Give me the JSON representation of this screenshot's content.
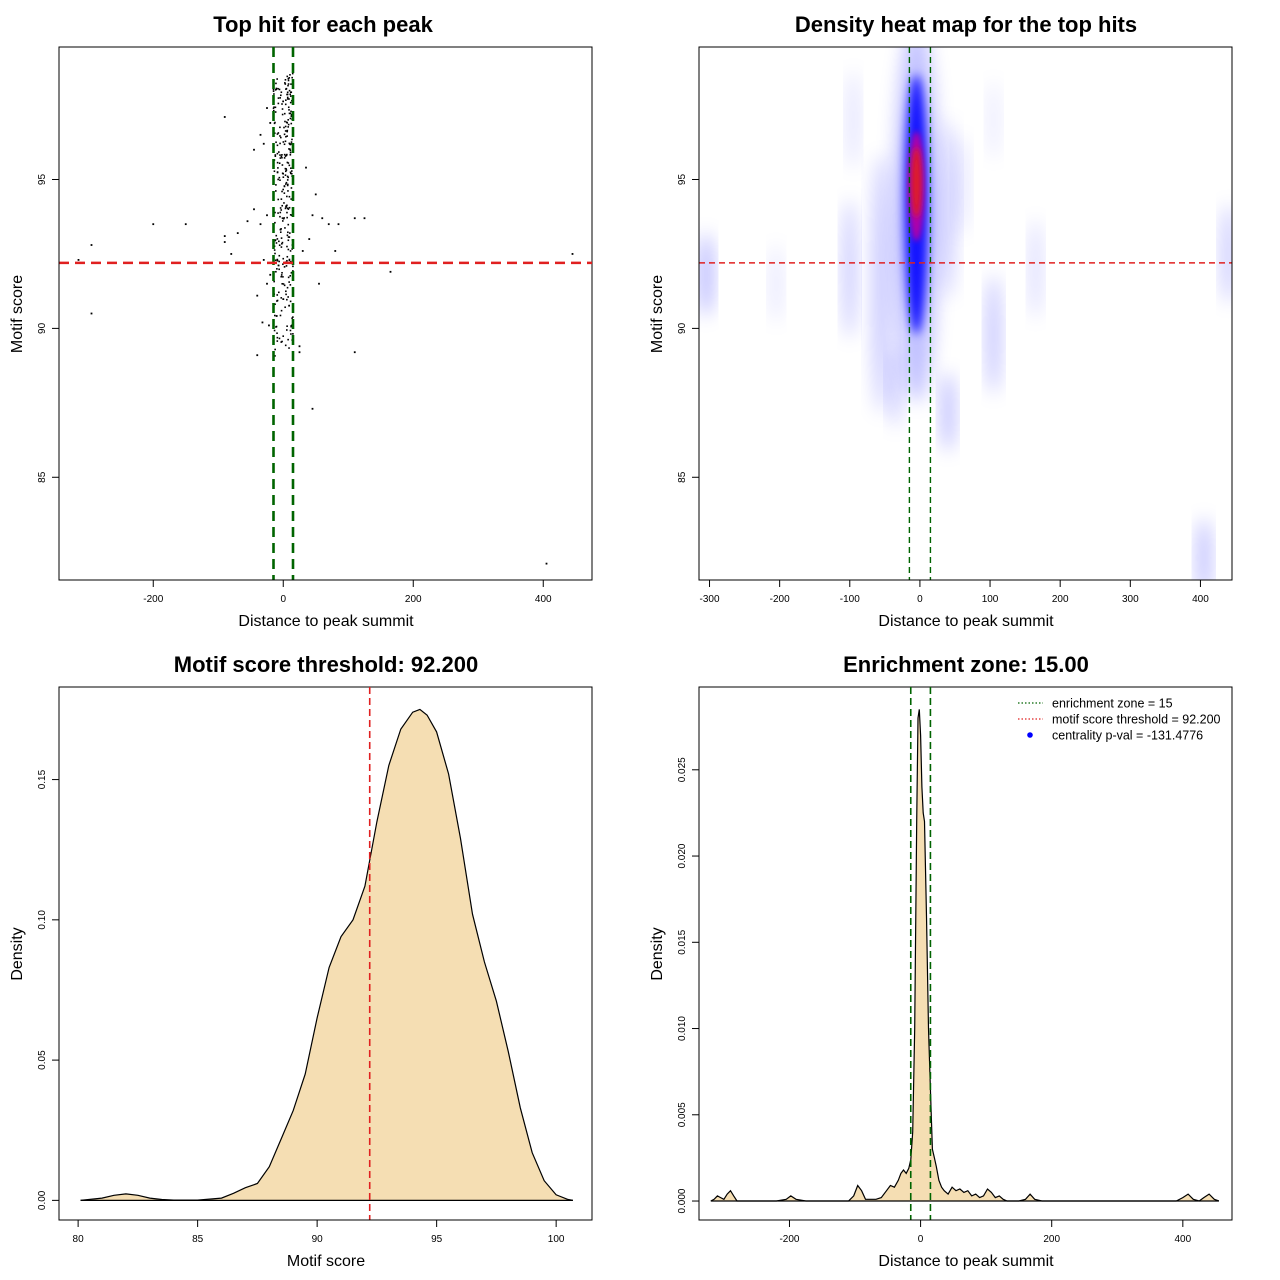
{
  "figure": {
    "background": "#ffffff",
    "colors": {
      "green": "#006400",
      "red": "#e02020",
      "black": "#000000",
      "wheat": "#f5deb3",
      "blue": "#0000ff"
    }
  },
  "chart_data": [
    {
      "type": "scatter",
      "title": "Top hit for each peak",
      "xlabel": "Distance to peak summit",
      "ylabel": "Motif score",
      "xlim": [
        -345,
        475
      ],
      "ylim": [
        81.55,
        99.45
      ],
      "xticks": [
        -200,
        0,
        200,
        400
      ],
      "xtick_labels": [
        "-200",
        "0",
        "200",
        "400"
      ],
      "yticks": [
        85,
        90,
        95
      ],
      "ytick_labels": [
        "85",
        "90",
        "95"
      ],
      "hlines": [
        {
          "y": 92.2,
          "color": "red",
          "style": "dashed"
        }
      ],
      "vlines": [
        {
          "x": -15,
          "color": "green",
          "style": "dashed"
        },
        {
          "x": 15,
          "color": "green",
          "style": "dashed"
        }
      ],
      "outliers": [
        [
          -315,
          92.3
        ],
        [
          -295,
          92.8
        ],
        [
          -295,
          90.5
        ],
        [
          -200,
          93.5
        ],
        [
          -150,
          93.5
        ],
        [
          -90,
          97.1
        ],
        [
          -90,
          93.1
        ],
        [
          -90,
          92.9
        ],
        [
          -80,
          92.5
        ],
        [
          -70,
          93.2
        ],
        [
          -55,
          93.6
        ],
        [
          -45,
          94.0
        ],
        [
          -45,
          96.0
        ],
        [
          -40,
          89.1
        ],
        [
          -40,
          91.1
        ],
        [
          -35,
          96.5
        ],
        [
          -35,
          93.5
        ],
        [
          -32,
          90.2
        ],
        [
          -30,
          96.2
        ],
        [
          -30,
          92.3
        ],
        [
          -25,
          93.8
        ],
        [
          -25,
          91.5
        ],
        [
          -25,
          97.4
        ],
        [
          -22,
          90.1
        ],
        [
          -20,
          91.8
        ],
        [
          -20,
          96.9
        ],
        [
          25,
          89.2
        ],
        [
          25,
          89.4
        ],
        [
          30,
          92.6
        ],
        [
          35,
          95.4
        ],
        [
          40,
          93.0
        ],
        [
          45,
          87.3
        ],
        [
          45,
          93.8
        ],
        [
          50,
          94.5
        ],
        [
          55,
          91.5
        ],
        [
          60,
          93.7
        ],
        [
          70,
          93.5
        ],
        [
          80,
          92.6
        ],
        [
          85,
          93.5
        ],
        [
          110,
          93.7
        ],
        [
          110,
          89.2
        ],
        [
          125,
          93.7
        ],
        [
          165,
          91.9
        ],
        [
          405,
          82.1
        ],
        [
          445,
          92.5
        ]
      ],
      "core_cluster": {
        "x_range": [
          -15,
          15
        ],
        "y_range": [
          89.0,
          98.6
        ],
        "n": 320
      }
    },
    {
      "type": "heatmap",
      "title": "Density heat map for the top hits",
      "xlabel": "Distance to peak summit",
      "ylabel": "Motif score",
      "xlim": [
        -315,
        445
      ],
      "ylim": [
        81.55,
        99.45
      ],
      "xticks": [
        -300,
        -200,
        -100,
        0,
        100,
        200,
        300,
        400
      ],
      "xtick_labels": [
        "-300",
        "-200",
        "-100",
        "0",
        "100",
        "200",
        "300",
        "400"
      ],
      "yticks": [
        85,
        90,
        95
      ],
      "ytick_labels": [
        "85",
        "90",
        "95"
      ],
      "hlines": [
        {
          "y": 92.2,
          "color": "red",
          "style": "dashed"
        }
      ],
      "vlines": [
        {
          "x": -15,
          "color": "green",
          "style": "dashed"
        },
        {
          "x": 15,
          "color": "green",
          "style": "dashed"
        }
      ],
      "palette": [
        "white",
        "blue",
        "red"
      ],
      "hotspot": {
        "x": -5,
        "y": 94.5
      }
    },
    {
      "type": "area",
      "title": "Motif score threshold: 92.200",
      "xlabel": "Motif score",
      "ylabel": "Density",
      "xlim": [
        79.2,
        101.5
      ],
      "ylim": [
        -0.007,
        0.183
      ],
      "xticks": [
        80,
        85,
        90,
        95,
        100
      ],
      "xtick_labels": [
        "80",
        "85",
        "90",
        "95",
        "100"
      ],
      "yticks": [
        0,
        0.05,
        0.1,
        0.15
      ],
      "ytick_labels": [
        "0.00",
        "0.05",
        "0.10",
        "0.15"
      ],
      "vlines": [
        {
          "x": 92.2,
          "color": "red",
          "style": "dashed"
        }
      ],
      "fill": "wheat",
      "x": [
        80.1,
        81,
        81.5,
        82,
        82.5,
        83,
        83.5,
        84,
        85,
        86,
        86.5,
        87,
        87.5,
        88,
        88.5,
        89,
        89.5,
        90,
        90.5,
        91,
        91.5,
        92,
        92.5,
        93,
        93.5,
        94,
        94.3,
        94.6,
        95,
        95.5,
        96,
        96.5,
        97,
        97.5,
        98,
        98.5,
        99,
        99.5,
        100,
        100.5,
        100.7
      ],
      "values": [
        0,
        0.0008,
        0.0018,
        0.0023,
        0.0018,
        0.0008,
        0.0003,
        0.0001,
        0.0001,
        0.0008,
        0.0025,
        0.0045,
        0.006,
        0.012,
        0.022,
        0.032,
        0.045,
        0.065,
        0.083,
        0.094,
        0.1,
        0.112,
        0.135,
        0.155,
        0.168,
        0.174,
        0.175,
        0.173,
        0.167,
        0.152,
        0.129,
        0.102,
        0.085,
        0.071,
        0.053,
        0.033,
        0.017,
        0.007,
        0.002,
        0.0003,
        0
      ]
    },
    {
      "type": "area",
      "title": "Enrichment zone: 15.00",
      "xlabel": "Distance to peak summit",
      "ylabel": "Density",
      "xlim": [
        -338,
        475
      ],
      "ylim": [
        -0.0011,
        0.0298
      ],
      "xticks": [
        -200,
        0,
        200,
        400
      ],
      "xtick_labels": [
        "-200",
        "0",
        "200",
        "400"
      ],
      "yticks": [
        0,
        0.005,
        0.01,
        0.015,
        0.02,
        0.025
      ],
      "ytick_labels": [
        "0.000",
        "0.005",
        "0.010",
        "0.015",
        "0.020",
        "0.025"
      ],
      "vlines": [
        {
          "x": -15,
          "color": "green",
          "style": "dashed"
        },
        {
          "x": 15,
          "color": "green",
          "style": "dashed"
        }
      ],
      "fill": "wheat",
      "x": [
        -320,
        -315,
        -310,
        -305,
        -300,
        -295,
        -290,
        -285,
        -280,
        -220,
        -205,
        -198,
        -190,
        -175,
        -110,
        -102,
        -96,
        -90,
        -84,
        -78,
        -68,
        -60,
        -52,
        -46,
        -40,
        -34,
        -30,
        -26,
        -22,
        -18,
        -15,
        -12,
        -9,
        -6,
        -4,
        -2,
        0,
        2,
        4,
        6,
        9,
        12,
        15,
        18,
        21,
        24,
        28,
        32,
        36,
        42,
        48,
        54,
        60,
        66,
        72,
        78,
        84,
        90,
        96,
        102,
        108,
        114,
        120,
        126,
        132,
        150,
        160,
        167,
        174,
        185,
        390,
        400,
        408,
        416,
        425,
        432,
        440,
        448,
        455
      ],
      "values": [
        0,
        0.0001,
        0.0003,
        0.0002,
        0.0001,
        0.0004,
        0.0006,
        0.0003,
        0,
        0,
        0.0001,
        0.0003,
        0.0001,
        0,
        0,
        0.0003,
        0.0009,
        0.0006,
        0.0001,
        0.0001,
        0.0001,
        0.0002,
        0.0006,
        0.0009,
        0.0008,
        0.0012,
        0.0016,
        0.0018,
        0.0016,
        0.0019,
        0.0024,
        0.004,
        0.01,
        0.022,
        0.028,
        0.0285,
        0.027,
        0.024,
        0.0225,
        0.022,
        0.0165,
        0.01,
        0.0065,
        0.003,
        0.0025,
        0.002,
        0.0012,
        0.0008,
        0.0006,
        0.0004,
        0.0008,
        0.0006,
        0.0007,
        0.0005,
        0.0006,
        0.0003,
        0.0004,
        0.0002,
        0.0003,
        0.0007,
        0.0005,
        0.0002,
        0.0003,
        0.0001,
        0,
        0,
        0.0001,
        0.0004,
        0.0001,
        0,
        0,
        0.0002,
        0.0004,
        0.0001,
        0,
        0.0002,
        0.0004,
        0.0001,
        0
      ],
      "legend": [
        {
          "label": "enrichment zone = 15",
          "color": "green",
          "kind": "dotted-line"
        },
        {
          "label": "motif score threshold = 92.200",
          "color": "red",
          "kind": "dotted-line"
        },
        {
          "label": "centrality p-val = -131.4776",
          "color": "blue",
          "kind": "point"
        }
      ],
      "legend_position": "top-right"
    }
  ]
}
